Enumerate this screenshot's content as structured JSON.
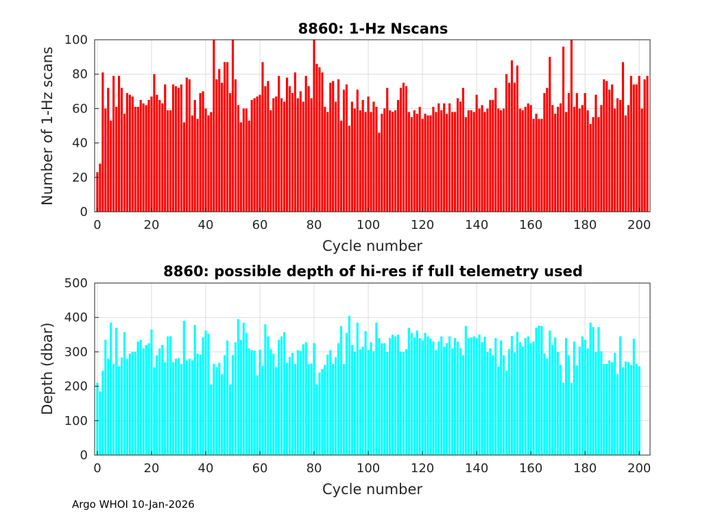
{
  "footer_text": "Argo WHOI 10-Jan-2026",
  "chart_data": [
    {
      "type": "bar",
      "title": "8860: 1-Hz Nscans",
      "xlabel": "Cycle number",
      "ylabel": "Number of 1-Hz scans",
      "xlim": [
        -1,
        204
      ],
      "ylim": [
        0,
        100
      ],
      "xticks": [
        0,
        20,
        40,
        60,
        80,
        100,
        120,
        140,
        160,
        180,
        200
      ],
      "yticks": [
        0,
        20,
        40,
        60,
        80,
        100
      ],
      "grid": true,
      "color": "#ff0000",
      "x_start": 0,
      "values": [
        23,
        28,
        81,
        60,
        72,
        53,
        79,
        61,
        79,
        72,
        57,
        69,
        68,
        67,
        61,
        61,
        65,
        63,
        62,
        65,
        67,
        80,
        68,
        65,
        63,
        74,
        59,
        59,
        74,
        73,
        72,
        74,
        52,
        78,
        77,
        56,
        65,
        54,
        69,
        70,
        60,
        56,
        58,
        100,
        77,
        83,
        75,
        87,
        87,
        69,
        100,
        77,
        62,
        52,
        60,
        60,
        53,
        65,
        66,
        67,
        68,
        87,
        73,
        76,
        59,
        66,
        67,
        79,
        66,
        64,
        78,
        73,
        69,
        81,
        66,
        70,
        64,
        79,
        73,
        66,
        100,
        86,
        84,
        81,
        61,
        58,
        75,
        76,
        64,
        77,
        53,
        71,
        74,
        50,
        64,
        60,
        71,
        59,
        65,
        58,
        67,
        58,
        64,
        61,
        46,
        57,
        60,
        72,
        59,
        58,
        59,
        65,
        72,
        75,
        73,
        58,
        55,
        59,
        57,
        61,
        54,
        57,
        56,
        56,
        61,
        58,
        63,
        59,
        63,
        57,
        63,
        58,
        58,
        66,
        64,
        72,
        55,
        59,
        59,
        58,
        68,
        60,
        62,
        58,
        60,
        65,
        65,
        72,
        60,
        59,
        60,
        80,
        75,
        88,
        75,
        85,
        60,
        59,
        61,
        63,
        62,
        54,
        57,
        54,
        54,
        69,
        72,
        90,
        62,
        57,
        61,
        63,
        96,
        58,
        69,
        100,
        61,
        69,
        60,
        62,
        69,
        59,
        51,
        55,
        68,
        55,
        62,
        77,
        76,
        71,
        74,
        60,
        66,
        65,
        87,
        56,
        62,
        79,
        74,
        74,
        79,
        60,
        77,
        79
      ]
    },
    {
      "type": "bar",
      "title": "8860: possible depth of hi-res if full telemetry used",
      "xlabel": "Cycle number",
      "ylabel": "Depth (dbar)",
      "xlim": [
        -1,
        204
      ],
      "ylim": [
        0,
        500
      ],
      "xticks": [
        0,
        20,
        40,
        60,
        80,
        100,
        120,
        140,
        160,
        180,
        200
      ],
      "yticks": [
        0,
        100,
        200,
        300,
        400,
        500
      ],
      "grid": true,
      "color": "#00ffff",
      "x_start": 0,
      "values": [
        210,
        185,
        245,
        335,
        280,
        385,
        265,
        370,
        258,
        284,
        357,
        280,
        295,
        300,
        300,
        330,
        335,
        310,
        320,
        325,
        365,
        255,
        290,
        310,
        320,
        270,
        345,
        345,
        270,
        280,
        282,
        265,
        390,
        275,
        280,
        275,
        378,
        295,
        292,
        342,
        362,
        352,
        205,
        265,
        255,
        268,
        235,
        290,
        333,
        205,
        290,
        328,
        395,
        335,
        385,
        355,
        310,
        305,
        303,
        232,
        306,
        260,
        380,
        345,
        308,
        295,
        256,
        335,
        345,
        357,
        268,
        285,
        297,
        265,
        305,
        302,
        322,
        328,
        264,
        266,
        325,
        205,
        240,
        250,
        262,
        292,
        305,
        265,
        285,
        325,
        375,
        265,
        355,
        405,
        320,
        301,
        385,
        307,
        315,
        360,
        305,
        328,
        302,
        385,
        340,
        325,
        325,
        300,
        340,
        350,
        345,
        350,
        300,
        300,
        308,
        370,
        355,
        342,
        362,
        340,
        333,
        355,
        345,
        338,
        330,
        305,
        330,
        345,
        315,
        325,
        345,
        310,
        340,
        330,
        310,
        290,
        375,
        340,
        342,
        345,
        340,
        350,
        328,
        344,
        300,
        310,
        290,
        340,
        257,
        333,
        290,
        245,
        308,
        346,
        298,
        358,
        328,
        315,
        340,
        345,
        325,
        330,
        370,
        376,
        375,
        295,
        281,
        362,
        320,
        342,
        300,
        262,
        210,
        340,
        290,
        210,
        330,
        260,
        315,
        345,
        335,
        310,
        385,
        372,
        300,
        372,
        302,
        265,
        265,
        275,
        270,
        297,
        235,
        345,
        255,
        272,
        270,
        262,
        338,
        265,
        258
      ]
    }
  ]
}
